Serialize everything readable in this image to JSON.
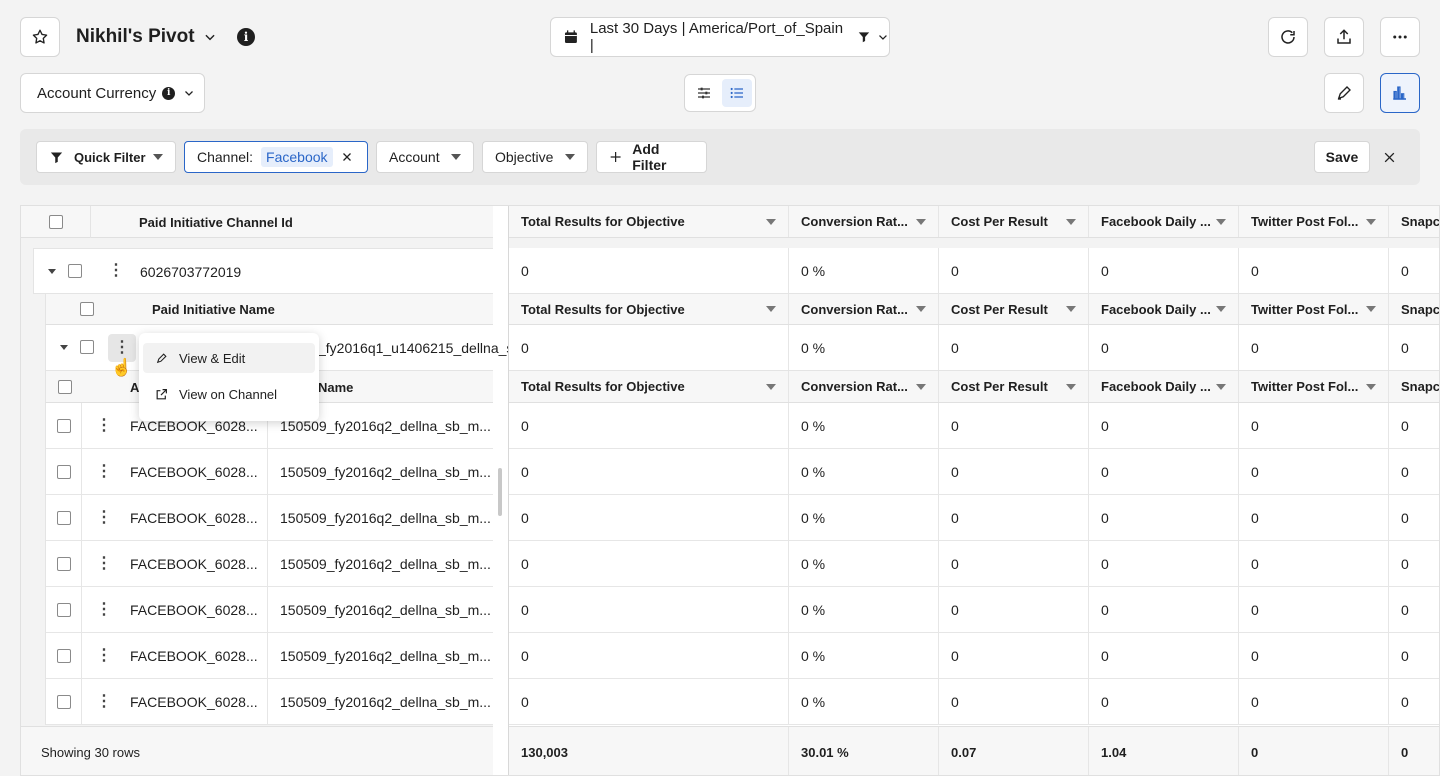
{
  "header": {
    "title": "Nikhil's Pivot",
    "date_range": "Last 30 Days | America/Port_of_Spain |"
  },
  "toolbar": {
    "currency_label": "Account Currency"
  },
  "filters": {
    "quick_filter": "Quick Filter",
    "channel_label": "Channel:",
    "channel_value": "Facebook",
    "account": "Account",
    "objective": "Objective",
    "add_filter": "Add Filter",
    "save": "Save"
  },
  "table": {
    "left_header": "Paid Initiative Channel Id",
    "group_id": "6026703772019",
    "sub_header": "Paid Initiative Name",
    "sub_value": "_fy2016q1_u1406215_dellna_s",
    "level3_header_a": "A",
    "level3_header_b": "Name",
    "columns": [
      "Total Results for Objective",
      "Conversion Rat...",
      "Cost Per Result",
      "Facebook Daily ...",
      "Twitter Post Fol...",
      "Snapch"
    ],
    "group_values": [
      "0",
      "0 %",
      "0",
      "0",
      "0",
      "0"
    ],
    "rows": [
      {
        "id": "FACEBOOK_6028...",
        "name": "150509_fy2016q2_dellna_sb_m...",
        "values": [
          "0",
          "0 %",
          "0",
          "0",
          "0",
          "0"
        ]
      },
      {
        "id": "FACEBOOK_6028...",
        "name": "150509_fy2016q2_dellna_sb_m...",
        "values": [
          "0",
          "0 %",
          "0",
          "0",
          "0",
          "0"
        ]
      },
      {
        "id": "FACEBOOK_6028...",
        "name": "150509_fy2016q2_dellna_sb_m...",
        "values": [
          "0",
          "0 %",
          "0",
          "0",
          "0",
          "0"
        ]
      },
      {
        "id": "FACEBOOK_6028...",
        "name": "150509_fy2016q2_dellna_sb_m...",
        "values": [
          "0",
          "0 %",
          "0",
          "0",
          "0",
          "0"
        ]
      },
      {
        "id": "FACEBOOK_6028...",
        "name": "150509_fy2016q2_dellna_sb_m...",
        "values": [
          "0",
          "0 %",
          "0",
          "0",
          "0",
          "0"
        ]
      },
      {
        "id": "FACEBOOK_6028...",
        "name": "150509_fy2016q2_dellna_sb_m...",
        "values": [
          "0",
          "0 %",
          "0",
          "0",
          "0",
          "0"
        ]
      },
      {
        "id": "FACEBOOK_6028...",
        "name": "150509_fy2016q2_dellna_sb_m...",
        "values": [
          "0",
          "0 %",
          "0",
          "0",
          "0",
          "0"
        ]
      }
    ],
    "footer_label": "Showing 30 rows",
    "footer_values": [
      "130,003",
      "30.01 %",
      "0.07",
      "1.04",
      "0",
      "0"
    ]
  },
  "context_menu": {
    "items": [
      "View & Edit",
      "View on Channel"
    ]
  },
  "colors": {
    "accent": "#2a66c8",
    "chip_bg": "#e6eefb"
  }
}
